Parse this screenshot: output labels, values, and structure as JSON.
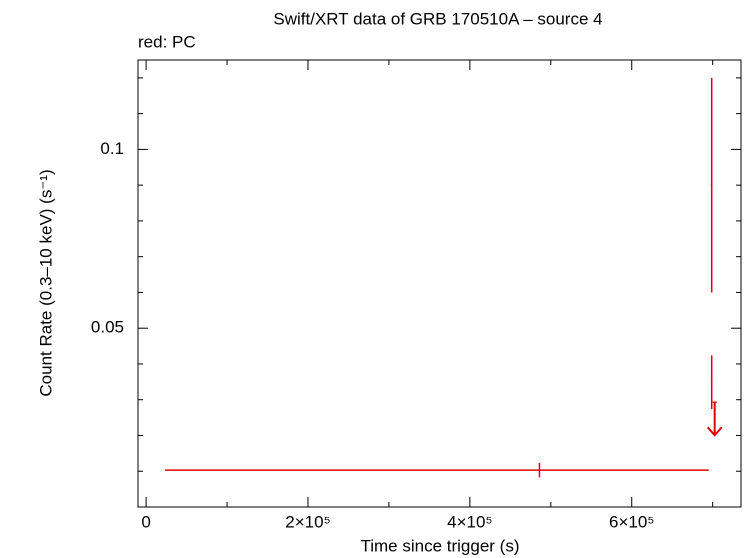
{
  "chart_data": {
    "type": "errorbar",
    "title": "Swift/XRT data of GRB 170510A – source 4",
    "subtitle": "red: PC",
    "xlabel": "Time since trigger (s)",
    "ylabel": "Count Rate (0.3–10 keV) (s⁻¹)",
    "color": "#e00000",
    "xlim": [
      -10000,
      735000
    ],
    "ylim": [
      0,
      0.125
    ],
    "xticks": [
      0,
      {
        "value": 200000,
        "label": "2×10⁵"
      },
      {
        "value": 400000,
        "label": "4×10⁵"
      },
      {
        "value": 600000,
        "label": "6×10⁵"
      }
    ],
    "xminorticks": [
      100000,
      300000,
      500000,
      700000
    ],
    "yticks": [
      0.1,
      0.05
    ],
    "yminorticks": [
      0.01,
      0.02,
      0.03,
      0.04,
      0.06,
      0.07,
      0.08,
      0.09,
      0.11,
      0.12
    ],
    "points": {
      "x": [
        486000,
        698800,
        698800
      ],
      "xerr_minus": [
        462500,
        1000,
        1000
      ],
      "xerr_plus": [
        209100,
        1000,
        1000
      ],
      "y": [
        0.0103,
        0.09,
        0.0349
      ],
      "yerr": [
        0.002,
        0.03,
        0.0075
      ]
    },
    "upper_limits": {
      "x": [
        702500
      ],
      "xerr": [
        2500
      ],
      "y": [
        0.0293
      ]
    }
  }
}
